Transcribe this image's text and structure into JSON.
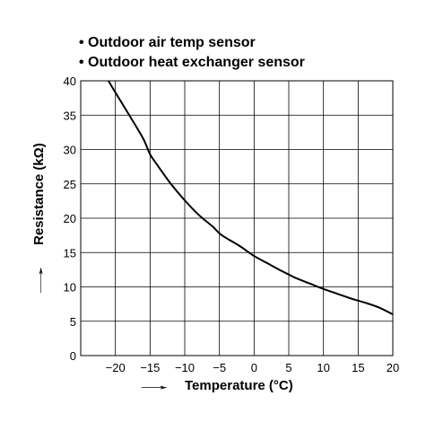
{
  "chart_data": {
    "type": "line",
    "legend_lines": [
      "• Outdoor air temp sensor",
      "• Outdoor heat exchanger sensor"
    ],
    "xlabel": "Temperature (°C)",
    "ylabel": "Resistance (kΩ)",
    "xlabel_arrow": "→",
    "ylabel_arrow": "→",
    "xlim": [
      -25,
      20
    ],
    "ylim": [
      0,
      40
    ],
    "x_ticks": [
      -20,
      -15,
      -10,
      -5,
      0,
      5,
      10,
      15,
      20
    ],
    "y_ticks": [
      0,
      5,
      10,
      15,
      20,
      25,
      30,
      35,
      40
    ],
    "x_tick_labels": [
      "−20",
      "−15",
      "−10",
      "−5",
      "0",
      "5",
      "10",
      "15",
      "20"
    ],
    "y_tick_labels": [
      "0",
      "5",
      "10",
      "15",
      "20",
      "25",
      "30",
      "35",
      "40"
    ],
    "grid": true,
    "series": [
      {
        "x": [
          -21,
          -20,
          -18,
          -16,
          -15,
          -14,
          -12,
          -10,
          -8,
          -6,
          -5,
          -4,
          -2,
          0,
          2,
          4,
          5,
          6,
          8,
          10,
          12,
          14,
          15,
          16,
          18,
          20
        ],
        "y": [
          40,
          38.3,
          35.0,
          31.6,
          29.3,
          27.8,
          25.0,
          22.6,
          20.5,
          18.8,
          17.8,
          17.1,
          15.9,
          14.5,
          13.4,
          12.3,
          11.8,
          11.3,
          10.5,
          9.7,
          9.0,
          8.3,
          8.0,
          7.7,
          7.0,
          6.0
        ],
        "color": "#000000"
      }
    ]
  }
}
